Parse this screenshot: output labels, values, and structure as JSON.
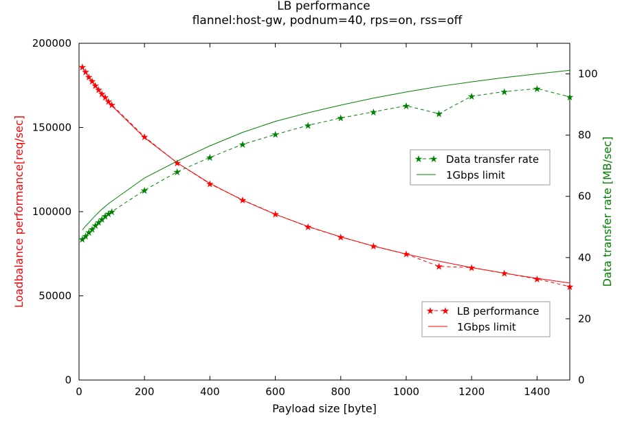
{
  "chart_data": {
    "type": "line",
    "title": "LB performance",
    "subtitle": "flannel:host-gw, podnum=40, rps=on, rss=off",
    "xlabel": "Payload size [byte]",
    "ylabel_left": "Loadbalance performance[req/sec]",
    "ylabel_right": "Data transfer rate [MB/sec]",
    "xlim": [
      0,
      1500
    ],
    "ylim_left": [
      0,
      200000
    ],
    "ylim_right": [
      0,
      110
    ],
    "x_ticks": [
      "0",
      "200",
      "400",
      "600",
      "800",
      "1000",
      "1200",
      "1400"
    ],
    "y_left_ticks": [
      "0",
      "50000",
      "100000",
      "150000",
      "200000"
    ],
    "y_right_ticks": [
      "0",
      "20",
      "40",
      "60",
      "80",
      "100"
    ],
    "grid": false,
    "colors": {
      "lb": "#ff0000",
      "transfer": "#008000"
    },
    "legend_upper": [
      {
        "label": "Data transfer rate",
        "style": "dashed-star"
      },
      {
        "label": "1Gbps limit",
        "style": "solid"
      }
    ],
    "legend_lower": [
      {
        "label": "LB performance",
        "style": "dashed-star"
      },
      {
        "label": "1Gbps limit",
        "style": "solid"
      }
    ],
    "series": [
      {
        "name": "LB performance",
        "axis": "left",
        "style": "dashed-star",
        "color": "#ff0000",
        "x": [
          10,
          20,
          30,
          40,
          50,
          60,
          70,
          80,
          90,
          100,
          200,
          300,
          400,
          500,
          600,
          700,
          800,
          900,
          1000,
          1100,
          1200,
          1300,
          1400,
          1500
        ],
        "y": [
          186000,
          183000,
          180000,
          177500,
          175000,
          172500,
          170000,
          168000,
          165500,
          163500,
          144500,
          129000,
          116500,
          107000,
          98500,
          91000,
          85000,
          79500,
          74800,
          67500,
          66800,
          63500,
          60000,
          55500
        ]
      },
      {
        "name": "1Gbps limit",
        "axis": "left",
        "style": "solid",
        "color": "#ff0000",
        "x": [
          10,
          20,
          30,
          40,
          50,
          60,
          70,
          80,
          90,
          100,
          200,
          300,
          400,
          500,
          600,
          700,
          800,
          900,
          1000,
          1100,
          1200,
          1300,
          1400,
          1500
        ],
        "y": [
          185500,
          182500,
          179800,
          177200,
          174700,
          172200,
          169800,
          167400,
          165200,
          162900,
          144000,
          129000,
          116800,
          106800,
          98400,
          91200,
          85000,
          79600,
          74800,
          70600,
          66800,
          63400,
          60400,
          57600
        ]
      },
      {
        "name": "Data transfer rate",
        "axis": "right",
        "style": "dashed-star",
        "color": "#008000",
        "x": [
          10,
          20,
          30,
          40,
          50,
          60,
          70,
          80,
          90,
          100,
          200,
          300,
          400,
          500,
          600,
          700,
          800,
          900,
          1000,
          1100,
          1200,
          1300,
          1400,
          1500
        ],
        "y": [
          46,
          47,
          48.3,
          49.3,
          50.5,
          51.5,
          52.5,
          53.5,
          54.3,
          55,
          62,
          68,
          72.7,
          77,
          80.2,
          83.2,
          85.6,
          87.6,
          89.6,
          87,
          92.7,
          94.2,
          95.2,
          92.5
        ]
      },
      {
        "name": "1Gbps limit",
        "axis": "right",
        "style": "solid",
        "color": "#008000",
        "x": [
          10,
          20,
          30,
          40,
          50,
          60,
          70,
          80,
          90,
          100,
          200,
          300,
          400,
          500,
          600,
          700,
          800,
          900,
          1000,
          1100,
          1200,
          1300,
          1400,
          1500
        ],
        "y": [
          49,
          50.3,
          51.4,
          52.6,
          53.7,
          54.8,
          55.8,
          56.7,
          57.6,
          58.4,
          66,
          71.5,
          76.5,
          80.9,
          84.5,
          87.3,
          89.8,
          92.1,
          94.1,
          95.9,
          97.4,
          98.8,
          100,
          101.2
        ]
      }
    ]
  }
}
